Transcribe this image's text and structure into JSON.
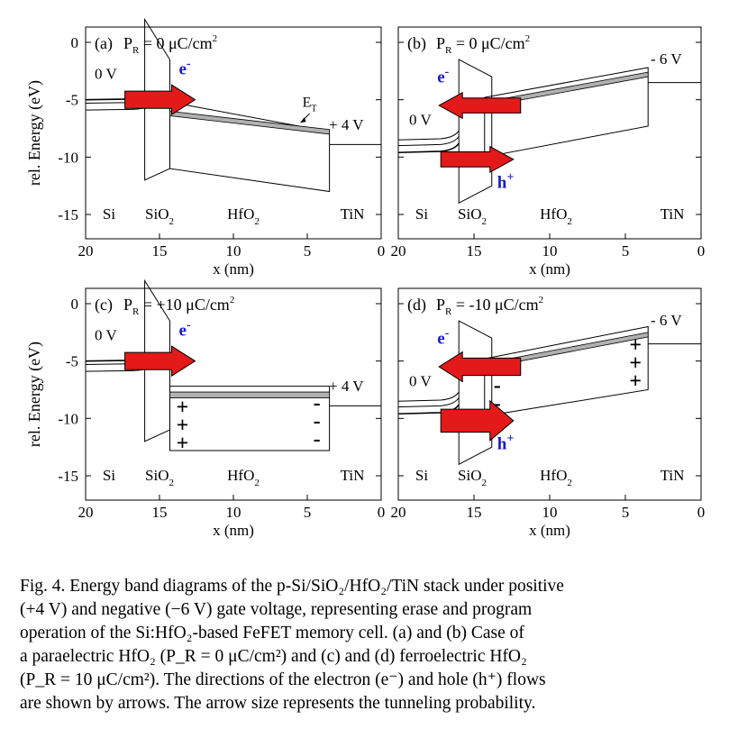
{
  "panels": [
    {
      "id": "a",
      "label": "(a)",
      "pr_prefix": "P",
      "pr_sub": "R",
      "pr_value": " = 0 μC/cm",
      "pr_sup": "2",
      "left_voltage": "0 V",
      "right_voltage": "+ 4 V",
      "et_label": "E",
      "et_sub": "T",
      "carriers": [
        {
          "text": "e",
          "sup": "-",
          "dir": "right"
        }
      ],
      "charges_left": [],
      "charges_right": []
    },
    {
      "id": "b",
      "label": "(b)",
      "pr_prefix": "P",
      "pr_sub": "R",
      "pr_value": " = 0 μC/cm",
      "pr_sup": "2",
      "left_voltage": "0 V",
      "right_voltage": "- 6 V",
      "carriers": [
        {
          "text": "e",
          "sup": "-",
          "dir": "left"
        },
        {
          "text": "h",
          "sup": "+",
          "dir": "right"
        }
      ],
      "charges_left": [],
      "charges_right": []
    },
    {
      "id": "c",
      "label": "(c)",
      "pr_prefix": "P",
      "pr_sub": "R",
      "pr_value": " = +10 μC/cm",
      "pr_sup": "2",
      "left_voltage": "0 V",
      "right_voltage": "+ 4 V",
      "carriers": [
        {
          "text": "e",
          "sup": "-",
          "dir": "right"
        }
      ],
      "charges_left": [
        "+",
        "+",
        "+"
      ],
      "charges_right": [
        "-",
        "-",
        "-"
      ]
    },
    {
      "id": "d",
      "label": "(d)",
      "pr_prefix": "P",
      "pr_sub": "R",
      "pr_value": " = -10 μC/cm",
      "pr_sup": "2",
      "left_voltage": "0 V",
      "right_voltage": "- 6 V",
      "carriers": [
        {
          "text": "e",
          "sup": "-",
          "dir": "left"
        },
        {
          "text": "h",
          "sup": "+",
          "dir": "right"
        }
      ],
      "charges_left": [
        "-",
        "-"
      ],
      "charges_right": [
        "+",
        "+",
        "+"
      ]
    }
  ],
  "axes": {
    "ylabel": "rel. Energy (eV)",
    "xlabel": "x (nm)",
    "yticks": [
      "0",
      "-5",
      "-10",
      "-15"
    ],
    "xticks": [
      "20",
      "15",
      "10",
      "5",
      "0"
    ],
    "regions": {
      "si": "Si",
      "sio2": "SiO",
      "sio2_sub": "2",
      "hfo2": "HfO",
      "hfo2_sub": "2",
      "tin": "TiN"
    }
  },
  "colors": {
    "arrow": "#e41a1a",
    "carrier_text": "#1a1acc",
    "trap_band": "#b0b0b0"
  },
  "caption": {
    "lines": [
      "Fig. 4.  Energy band diagrams of the p-Si/SiO₂/HfO₂/TiN stack under positive",
      "(+4 V) and negative (−6 V) gate voltage, representing erase and program",
      "operation of the Si:HfO₂-based FeFET memory cell. (a) and (b) Case of",
      "a paraelectric HfO₂ (P_R = 0 μC/cm²) and (c) and (d) ferroelectric HfO₂",
      "(P_R = 10 μC/cm²). The directions of the electron (e⁻) and hole (h⁺) flows",
      "are shown by arrows. The arrow size represents the tunneling probability."
    ]
  }
}
